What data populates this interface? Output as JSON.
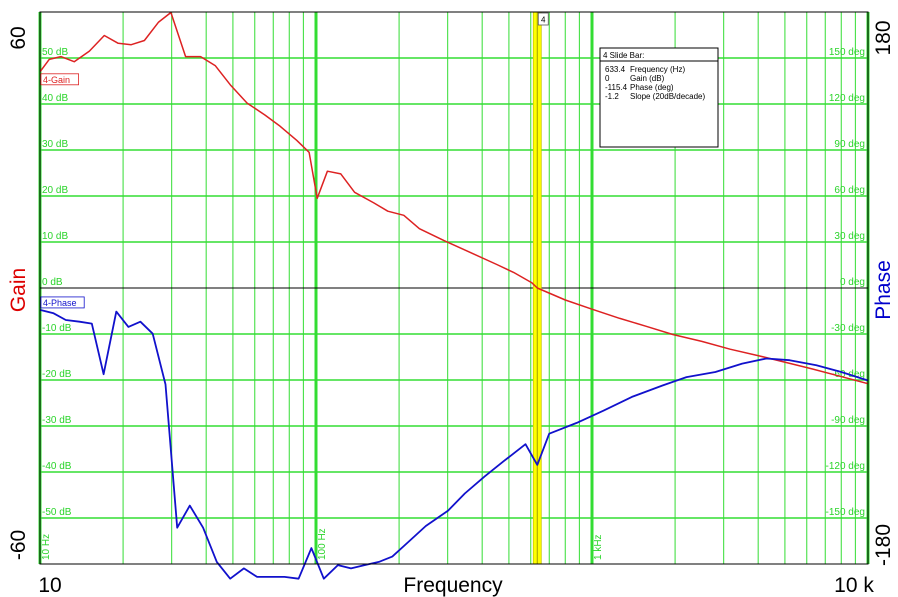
{
  "chart_data": {
    "type": "line",
    "xlabel": "Frequency",
    "x_scale": "log",
    "xlim": [
      10,
      10000
    ],
    "x_tick_labels": {
      "min": "10",
      "max": "10 k"
    },
    "x_decade_labels": [
      {
        "x": 10,
        "label": "10 Hz"
      },
      {
        "x": 100,
        "label": "100 Hz"
      },
      {
        "x": 1000,
        "label": "1 kHz"
      }
    ],
    "y_left": {
      "label": "Gain",
      "min_label": "-60",
      "max_label": "60",
      "ylim": [
        -60,
        60
      ],
      "color": "#dd0000"
    },
    "y_right": {
      "label": "Phase",
      "min_label": "-180",
      "max_label": "180",
      "ylim": [
        -180,
        180
      ],
      "color": "#0000cc"
    },
    "gain_grid_labels": [
      {
        "v": 50,
        "t": "50 dB"
      },
      {
        "v": 40,
        "t": "40 dB"
      },
      {
        "v": 30,
        "t": "30 dB"
      },
      {
        "v": 20,
        "t": "20 dB"
      },
      {
        "v": 10,
        "t": "10 dB"
      },
      {
        "v": 0,
        "t": "0 dB"
      },
      {
        "v": -10,
        "t": "-10 dB"
      },
      {
        "v": -20,
        "t": "-20 dB"
      },
      {
        "v": -30,
        "t": "-30 dB"
      },
      {
        "v": -40,
        "t": "-40 dB"
      },
      {
        "v": -50,
        "t": "-50 dB"
      }
    ],
    "phase_grid_labels": [
      {
        "v": 150,
        "t": "150 deg"
      },
      {
        "v": 120,
        "t": "120 deg"
      },
      {
        "v": 90,
        "t": "90 deg"
      },
      {
        "v": 60,
        "t": "60 deg"
      },
      {
        "v": 30,
        "t": "30 deg"
      },
      {
        "v": 0,
        "t": "0 deg"
      },
      {
        "v": -30,
        "t": "-30 deg"
      },
      {
        "v": -60,
        "t": "-60 deg"
      },
      {
        "v": -90,
        "t": "-90 deg"
      },
      {
        "v": -120,
        "t": "-120 deg"
      },
      {
        "v": -150,
        "t": "-150 deg"
      }
    ],
    "grid": true,
    "grid_color": "#33dd33",
    "series": [
      {
        "name": "4-Gain",
        "axis": "left",
        "color": "#dd2222",
        "points": [
          [
            10,
            47
          ],
          [
            10.8,
            49.7
          ],
          [
            11.9,
            50.3
          ],
          [
            13.3,
            49.2
          ],
          [
            15.1,
            51.5
          ],
          [
            17.1,
            54.9
          ],
          [
            19.2,
            53.2
          ],
          [
            21.4,
            52.9
          ],
          [
            23.9,
            53.8
          ],
          [
            26.9,
            57.8
          ],
          [
            29.8,
            59.9
          ],
          [
            33.7,
            50.3
          ],
          [
            38.2,
            50.3
          ],
          [
            43.2,
            48.3
          ],
          [
            48.9,
            44.2
          ],
          [
            56.3,
            40.2
          ],
          [
            65.3,
            37.6
          ],
          [
            73.6,
            35.3
          ],
          [
            85.1,
            32.1
          ],
          [
            94.4,
            29.5
          ],
          [
            101,
            19.5
          ],
          [
            110,
            25.4
          ],
          [
            123,
            24.8
          ],
          [
            138,
            20.8
          ],
          [
            162,
            18.5
          ],
          [
            182,
            16.7
          ],
          [
            208,
            15.8
          ],
          [
            237,
            12.9
          ],
          [
            291,
            10.3
          ],
          [
            354,
            8.0
          ],
          [
            452,
            5.1
          ],
          [
            520,
            3.4
          ],
          [
            606,
            1.1
          ],
          [
            633.4,
            0
          ],
          [
            800,
            -2.6
          ],
          [
            1000,
            -4.6
          ],
          [
            1261,
            -6.6
          ],
          [
            1566,
            -8.3
          ],
          [
            1962,
            -10.1
          ],
          [
            2500,
            -11.6
          ],
          [
            3165,
            -13.3
          ],
          [
            3993,
            -14.7
          ],
          [
            5054,
            -16.2
          ],
          [
            6295,
            -17.6
          ],
          [
            8054,
            -19.3
          ],
          [
            10000,
            -20.8
          ]
        ]
      },
      {
        "name": "4-Phase",
        "axis": "right",
        "color": "#1111cc",
        "points": [
          [
            10,
            -14.3
          ],
          [
            11.2,
            -16.5
          ],
          [
            12.4,
            -20.9
          ],
          [
            13.9,
            -22.0
          ],
          [
            15.4,
            -23.2
          ],
          [
            17.0,
            -56.2
          ],
          [
            18.9,
            -15.4
          ],
          [
            20.9,
            -25.4
          ],
          [
            23.1,
            -22.0
          ],
          [
            25.6,
            -29.8
          ],
          [
            28.5,
            -62.9
          ],
          [
            31.4,
            -156.3
          ],
          [
            34.9,
            -141.9
          ],
          [
            39.0,
            -156.3
          ],
          [
            43.7,
            -178.6
          ],
          [
            48.9,
            -189.6
          ],
          [
            54.8,
            -182.9
          ],
          [
            61.2,
            -188.4
          ],
          [
            68.7,
            -188.4
          ],
          [
            76.9,
            -188.4
          ],
          [
            86.5,
            -189.6
          ],
          [
            96.2,
            -169.6
          ],
          [
            106.7,
            -189.6
          ],
          [
            120.0,
            -180.7
          ],
          [
            133.9,
            -182.9
          ],
          [
            150,
            -180.7
          ],
          [
            169,
            -178.6
          ],
          [
            189,
            -175.2
          ],
          [
            214,
            -166.3
          ],
          [
            250,
            -155.2
          ],
          [
            301,
            -145.2
          ],
          [
            346,
            -134.0
          ],
          [
            408,
            -123.0
          ],
          [
            479,
            -112.9
          ],
          [
            574,
            -101.9
          ],
          [
            633.4,
            -115.4
          ],
          [
            700,
            -95.0
          ],
          [
            880,
            -88.0
          ],
          [
            1100,
            -80.0
          ],
          [
            1395,
            -71.0
          ],
          [
            1800,
            -63.6
          ],
          [
            2200,
            -58.1
          ],
          [
            2800,
            -54.8
          ],
          [
            3500,
            -49.3
          ],
          [
            4286,
            -46.0
          ],
          [
            5200,
            -47.1
          ],
          [
            6500,
            -50.4
          ],
          [
            8000,
            -54.8
          ],
          [
            10000,
            -60.3
          ]
        ]
      }
    ],
    "cursor": {
      "x": 633.4,
      "color": "#ffff00",
      "tag": "4"
    },
    "info_box": {
      "title": "4  Slide Bar:",
      "rows": [
        {
          "value": "633.4",
          "label": "Frequency (Hz)"
        },
        {
          "value": "0",
          "label": "Gain (dB)"
        },
        {
          "value": "-115.4",
          "label": "Phase (deg)"
        },
        {
          "value": "-1.2",
          "label": "Slope (20dB/decade)"
        }
      ]
    }
  }
}
